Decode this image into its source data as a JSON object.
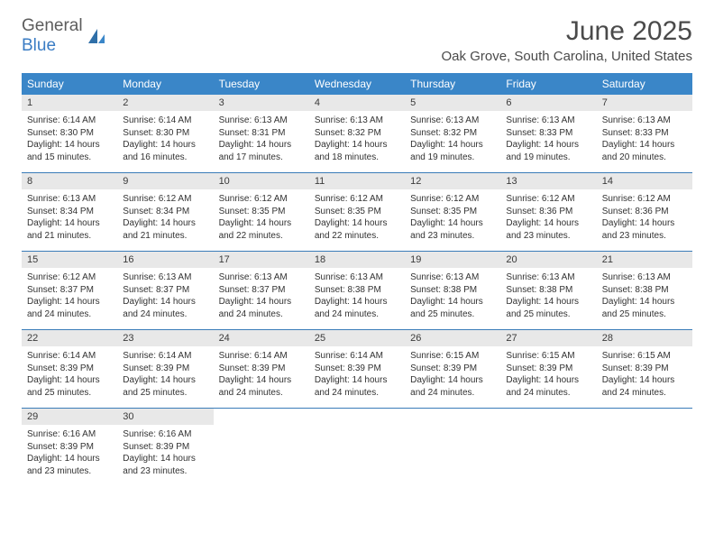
{
  "brand": {
    "text1": "General",
    "text2": "Blue"
  },
  "title": "June 2025",
  "location": "Oak Grove, South Carolina, United States",
  "colors": {
    "header_bg": "#3a86c8",
    "header_text": "#ffffff",
    "daynum_bg": "#e8e8e8",
    "border": "#3a7cb8",
    "brand_blue": "#3a7cc4",
    "brand_gray": "#5c5c5c"
  },
  "weekdays": [
    "Sunday",
    "Monday",
    "Tuesday",
    "Wednesday",
    "Thursday",
    "Friday",
    "Saturday"
  ],
  "days": [
    {
      "n": "1",
      "sr": "6:14 AM",
      "ss": "8:30 PM",
      "dh": "14",
      "dm": "15"
    },
    {
      "n": "2",
      "sr": "6:14 AM",
      "ss": "8:30 PM",
      "dh": "14",
      "dm": "16"
    },
    {
      "n": "3",
      "sr": "6:13 AM",
      "ss": "8:31 PM",
      "dh": "14",
      "dm": "17"
    },
    {
      "n": "4",
      "sr": "6:13 AM",
      "ss": "8:32 PM",
      "dh": "14",
      "dm": "18"
    },
    {
      "n": "5",
      "sr": "6:13 AM",
      "ss": "8:32 PM",
      "dh": "14",
      "dm": "19"
    },
    {
      "n": "6",
      "sr": "6:13 AM",
      "ss": "8:33 PM",
      "dh": "14",
      "dm": "19"
    },
    {
      "n": "7",
      "sr": "6:13 AM",
      "ss": "8:33 PM",
      "dh": "14",
      "dm": "20"
    },
    {
      "n": "8",
      "sr": "6:13 AM",
      "ss": "8:34 PM",
      "dh": "14",
      "dm": "21"
    },
    {
      "n": "9",
      "sr": "6:12 AM",
      "ss": "8:34 PM",
      "dh": "14",
      "dm": "21"
    },
    {
      "n": "10",
      "sr": "6:12 AM",
      "ss": "8:35 PM",
      "dh": "14",
      "dm": "22"
    },
    {
      "n": "11",
      "sr": "6:12 AM",
      "ss": "8:35 PM",
      "dh": "14",
      "dm": "22"
    },
    {
      "n": "12",
      "sr": "6:12 AM",
      "ss": "8:35 PM",
      "dh": "14",
      "dm": "23"
    },
    {
      "n": "13",
      "sr": "6:12 AM",
      "ss": "8:36 PM",
      "dh": "14",
      "dm": "23"
    },
    {
      "n": "14",
      "sr": "6:12 AM",
      "ss": "8:36 PM",
      "dh": "14",
      "dm": "23"
    },
    {
      "n": "15",
      "sr": "6:12 AM",
      "ss": "8:37 PM",
      "dh": "14",
      "dm": "24"
    },
    {
      "n": "16",
      "sr": "6:13 AM",
      "ss": "8:37 PM",
      "dh": "14",
      "dm": "24"
    },
    {
      "n": "17",
      "sr": "6:13 AM",
      "ss": "8:37 PM",
      "dh": "14",
      "dm": "24"
    },
    {
      "n": "18",
      "sr": "6:13 AM",
      "ss": "8:38 PM",
      "dh": "14",
      "dm": "24"
    },
    {
      "n": "19",
      "sr": "6:13 AM",
      "ss": "8:38 PM",
      "dh": "14",
      "dm": "25"
    },
    {
      "n": "20",
      "sr": "6:13 AM",
      "ss": "8:38 PM",
      "dh": "14",
      "dm": "25"
    },
    {
      "n": "21",
      "sr": "6:13 AM",
      "ss": "8:38 PM",
      "dh": "14",
      "dm": "25"
    },
    {
      "n": "22",
      "sr": "6:14 AM",
      "ss": "8:39 PM",
      "dh": "14",
      "dm": "25"
    },
    {
      "n": "23",
      "sr": "6:14 AM",
      "ss": "8:39 PM",
      "dh": "14",
      "dm": "25"
    },
    {
      "n": "24",
      "sr": "6:14 AM",
      "ss": "8:39 PM",
      "dh": "14",
      "dm": "24"
    },
    {
      "n": "25",
      "sr": "6:14 AM",
      "ss": "8:39 PM",
      "dh": "14",
      "dm": "24"
    },
    {
      "n": "26",
      "sr": "6:15 AM",
      "ss": "8:39 PM",
      "dh": "14",
      "dm": "24"
    },
    {
      "n": "27",
      "sr": "6:15 AM",
      "ss": "8:39 PM",
      "dh": "14",
      "dm": "24"
    },
    {
      "n": "28",
      "sr": "6:15 AM",
      "ss": "8:39 PM",
      "dh": "14",
      "dm": "24"
    },
    {
      "n": "29",
      "sr": "6:16 AM",
      "ss": "8:39 PM",
      "dh": "14",
      "dm": "23"
    },
    {
      "n": "30",
      "sr": "6:16 AM",
      "ss": "8:39 PM",
      "dh": "14",
      "dm": "23"
    }
  ],
  "labels": {
    "sunrise": "Sunrise:",
    "sunset": "Sunset:",
    "daylight": "Daylight:",
    "hours": "hours",
    "and": "and",
    "minutes": "minutes."
  }
}
